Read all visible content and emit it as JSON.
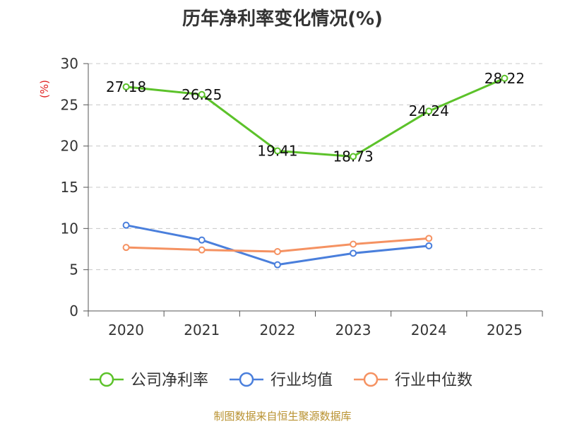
{
  "chart_data": {
    "type": "line",
    "title": "历年净利率变化情况(%)",
    "ylabel": "(%)",
    "xlabel": "",
    "categories": [
      "2020",
      "2021",
      "2022",
      "2023",
      "2024",
      "2025"
    ],
    "ylim": [
      0,
      30
    ],
    "yticks": [
      0,
      5,
      10,
      15,
      20,
      25,
      30
    ],
    "grid": true,
    "legend_position": "bottom",
    "series": [
      {
        "name": "公司净利率",
        "color": "#5cc22a",
        "show_labels": true,
        "values": [
          27.18,
          26.25,
          19.41,
          18.73,
          24.24,
          28.22
        ]
      },
      {
        "name": "行业均值",
        "color": "#4a7fdc",
        "show_labels": false,
        "values": [
          10.4,
          8.6,
          5.6,
          7.0,
          7.9,
          null
        ]
      },
      {
        "name": "行业中位数",
        "color": "#f59262",
        "show_labels": false,
        "values": [
          7.7,
          7.4,
          7.2,
          8.1,
          8.8,
          null
        ]
      }
    ]
  },
  "footer": {
    "source": "制图数据来自恒生聚源数据库"
  }
}
